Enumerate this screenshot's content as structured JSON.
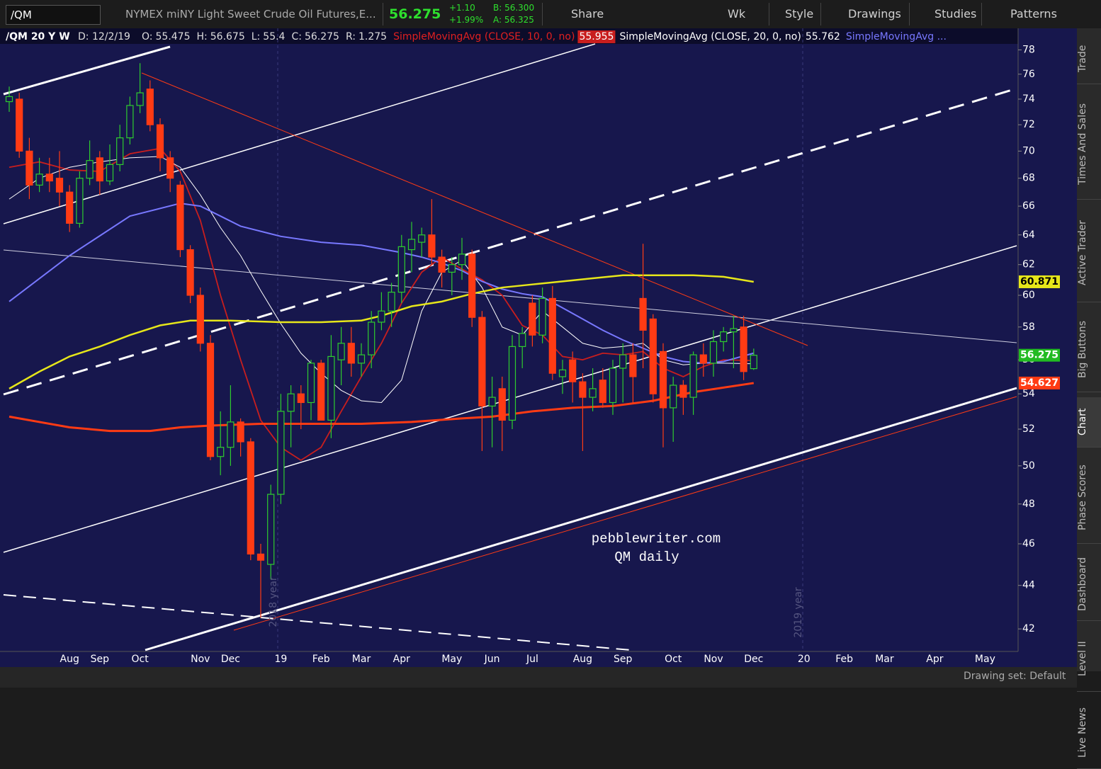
{
  "toolbar": {
    "symbol": "/QM",
    "description": "NYMEX miNY Light Sweet Crude Oil Futures,E...",
    "change": "+1.10",
    "change_pct": "+1.99%",
    "bid": "B: 56.300",
    "ask": "A: 56.325",
    "buttons": [
      "Share",
      "Wk",
      "Style",
      "Drawings",
      "Studies",
      "Patterns"
    ]
  },
  "info": {
    "symbol": "/QM 20 Y W",
    "date": "D: 12/2/19",
    "ohlc_labels": [
      "O:",
      "H:",
      "L:",
      "C:"
    ],
    "range_label": "R:",
    "range": 1.275,
    "more_study": "SimpleMovingAvg ..."
  },
  "sidebar": [
    "Trade",
    "Times And Sales",
    "Active Trader",
    "Big Buttons",
    "Chart",
    "Phase Scores",
    "Dashboard",
    "Level II",
    "Live News"
  ],
  "status": "Drawing set: Default",
  "chart_data": {
    "type": "candlestick",
    "log_scale": true,
    "categories": [
      null,
      null,
      null,
      null,
      null,
      null,
      "Aug",
      null,
      null,
      "Sep",
      null,
      null,
      null,
      "Oct",
      null,
      null,
      null,
      null,
      null,
      "Nov",
      null,
      null,
      "Dec",
      null,
      null,
      null,
      null,
      "19",
      null,
      null,
      null,
      "Feb",
      null,
      null,
      null,
      "Mar",
      null,
      null,
      null,
      "Apr",
      null,
      null,
      null,
      null,
      "May",
      null,
      null,
      null,
      "Jun",
      null,
      null,
      null,
      "Jul",
      null,
      null,
      null,
      null,
      "Aug",
      null,
      null,
      null,
      "Sep",
      null,
      null,
      null,
      null,
      "Oct",
      null,
      null,
      null,
      "Nov",
      null,
      null,
      null,
      "Dec",
      null,
      null,
      null,
      null,
      "20",
      null,
      null,
      null,
      "Feb",
      null,
      null,
      null,
      "Mar",
      null,
      null,
      null,
      null,
      "Apr",
      null,
      null,
      null,
      null,
      "May",
      null,
      null,
      null
    ],
    "open": [
      73.8,
      74,
      70,
      67.5,
      68.3,
      68,
      67,
      64.8,
      68,
      69.5,
      67.8,
      69,
      71,
      73.5,
      74.8,
      72,
      69.5,
      67.5,
      63,
      60,
      57,
      50.5,
      51,
      52.4,
      51.3,
      45.5,
      45,
      48.5,
      53,
      54,
      53.5,
      55.8,
      52.5,
      56,
      57,
      55.8,
      56.3,
      58.3,
      59,
      60.2,
      63,
      63.5,
      64,
      62.5,
      61.5,
      62,
      62.7,
      58.6,
      53.3,
      54.3,
      52.5,
      56.8,
      59.5,
      57.5,
      59.8,
      55,
      56,
      54.7,
      53.8,
      54.8,
      53.5,
      55.5,
      56.3,
      59.8,
      58.5,
      56.5,
      53.2,
      54.5,
      53.8,
      56.3,
      55.8,
      57.1,
      57.7,
      58,
      55.475,
      null,
      null,
      null,
      null,
      null,
      null,
      null,
      null,
      null,
      null,
      null,
      null,
      null,
      null,
      null,
      null,
      null,
      null,
      null,
      null,
      null,
      null,
      null,
      null,
      null,
      null
    ],
    "high": [
      75,
      74.5,
      71,
      69.5,
      69.5,
      70,
      67.5,
      68.5,
      70.8,
      70,
      70.5,
      72,
      74.2,
      76.9,
      75.5,
      72.5,
      70,
      67.8,
      63.3,
      60.5,
      57.5,
      53,
      54.5,
      52.6,
      51.5,
      46,
      49,
      54,
      54.5,
      54.5,
      56,
      56,
      57.5,
      58,
      58,
      57,
      59,
      60.2,
      60.8,
      64,
      64.9,
      64.5,
      66.5,
      63,
      62.5,
      63.8,
      63,
      59,
      55,
      55,
      57.5,
      58,
      60,
      60.5,
      60.6,
      56,
      56.5,
      55.2,
      55.5,
      55.5,
      56,
      57,
      57,
      63.4,
      58.8,
      57,
      55,
      54.8,
      56.5,
      57,
      57.8,
      58,
      58.7,
      58.7,
      56.675,
      null,
      null,
      null,
      null,
      null,
      null,
      null,
      null,
      null,
      null,
      null,
      null,
      null,
      null,
      null,
      null,
      null,
      null,
      null,
      null,
      null,
      null,
      null,
      null,
      null,
      null
    ],
    "low": [
      73,
      69.5,
      66.5,
      67,
      67,
      66,
      64.2,
      64.5,
      67.5,
      66.8,
      67.5,
      68.5,
      70.5,
      72.9,
      71.5,
      68.5,
      67,
      62.5,
      59.5,
      56.5,
      50.3,
      49.5,
      50,
      50.5,
      45.2,
      42.5,
      44.3,
      48,
      51,
      52,
      52.5,
      52.5,
      51.5,
      54.5,
      55,
      55,
      55.5,
      57.8,
      58,
      59.5,
      61.5,
      62.5,
      62,
      60.5,
      60,
      61,
      58,
      50.8,
      51,
      50.8,
      52,
      55.5,
      56.8,
      57,
      54.8,
      54,
      53.5,
      50.8,
      53,
      53.2,
      52.8,
      53.5,
      53.5,
      55.5,
      53.5,
      51,
      51.3,
      52.8,
      52.8,
      55,
      55,
      56.5,
      55.5,
      54.8,
      55.4,
      null,
      null,
      null,
      null,
      null,
      null,
      null,
      null,
      null,
      null,
      null,
      null,
      null,
      null,
      null,
      null,
      null,
      null,
      null,
      null,
      null,
      null,
      null,
      null,
      null,
      null
    ],
    "close": [
      74.2,
      70,
      67.5,
      68.3,
      67.8,
      67,
      64.8,
      68,
      69.3,
      67.8,
      69,
      71,
      73.5,
      74.5,
      72,
      69.5,
      68,
      63,
      60,
      57,
      50.5,
      51,
      52.4,
      51.3,
      45.5,
      45.2,
      48.5,
      53,
      54,
      53.5,
      55.8,
      52.5,
      56.2,
      57,
      55.8,
      56.3,
      58.3,
      59,
      60.2,
      63.2,
      63.7,
      64,
      62.5,
      61.5,
      62,
      62.7,
      58.6,
      53.3,
      53.8,
      52.5,
      56.8,
      57.6,
      57.5,
      59.8,
      55.2,
      55.4,
      54.7,
      53.8,
      54.3,
      53.5,
      55.5,
      56.3,
      55,
      57.8,
      54,
      53.2,
      54.5,
      53.8,
      56.3,
      55.8,
      57.1,
      57.7,
      57.9,
      55.3,
      56.275,
      null,
      null,
      null,
      null,
      null,
      null,
      null,
      null,
      null,
      null,
      null,
      null,
      null,
      null,
      null,
      null,
      null,
      null,
      null,
      null,
      null,
      null,
      null,
      null,
      null,
      null
    ],
    "up_color": "#2ecc2e",
    "down_color": "#ff3b14",
    "series": [
      {
        "name": "SimpleMovingAvg (CLOSE, 10, 0, no)",
        "color": "#c81e1e",
        "width": 1.8,
        "x": [
          0,
          3,
          6,
          9,
          12,
          15,
          17,
          19,
          21,
          23,
          25,
          27,
          29,
          31,
          33,
          35,
          37,
          39,
          41,
          43,
          45,
          47,
          49,
          51,
          53,
          55,
          57,
          59,
          61,
          63,
          65,
          67,
          69,
          71,
          74
        ],
        "values": [
          68.8,
          69.2,
          68.6,
          68.5,
          69.8,
          70.2,
          68.5,
          65,
          60,
          56,
          52.5,
          51,
          50.3,
          51,
          53,
          55,
          57,
          59.5,
          61.5,
          62.5,
          61.7,
          61,
          60,
          58.1,
          57.5,
          56.2,
          56,
          56.4,
          56.3,
          56.5,
          55.5,
          55,
          55.6,
          56,
          55.955
        ]
      },
      {
        "name": "SimpleMovingAvg (CLOSE, 20, 0, no)",
        "color": "#ffffff",
        "width": 1,
        "x": [
          0,
          3,
          6,
          9,
          12,
          15,
          17,
          19,
          21,
          23,
          25,
          27,
          29,
          31,
          33,
          35,
          37,
          39,
          41,
          43,
          45,
          47,
          49,
          51,
          53,
          55,
          57,
          59,
          61,
          63,
          65,
          67,
          69,
          71,
          74
        ],
        "values": [
          66.5,
          68,
          68.8,
          69.2,
          69.5,
          69.6,
          68.8,
          66.8,
          64.5,
          62.6,
          60.3,
          58.2,
          56.4,
          55.2,
          54.2,
          53.6,
          53.5,
          54.8,
          59,
          61.5,
          62.3,
          60.5,
          58,
          57.5,
          59,
          58,
          57,
          56.7,
          56.8,
          57,
          56,
          55.7,
          55.8,
          55.8,
          55.762
        ]
      },
      {
        "color": "#7878ff",
        "width": 2,
        "x": [
          0,
          6,
          12,
          17,
          19,
          21,
          23,
          27,
          31,
          35,
          39,
          41,
          43,
          45,
          47,
          49,
          51,
          53,
          55,
          57,
          59,
          61,
          63,
          65,
          67,
          69,
          71,
          74
        ],
        "values": [
          59.6,
          62.6,
          65.3,
          66.2,
          66,
          65.3,
          64.6,
          63.9,
          63.5,
          63.3,
          62.8,
          62.5,
          62.1,
          61.6,
          60.9,
          60.4,
          60.1,
          59.9,
          59.2,
          58.5,
          57.8,
          57.2,
          56.7,
          56.2,
          55.9,
          55.8,
          55.9,
          56.4
        ]
      },
      {
        "color": "#e6e61a",
        "width": 2.5,
        "x": [
          0,
          3,
          6,
          9,
          12,
          15,
          18,
          22,
          27,
          31,
          35,
          37,
          40,
          43,
          46,
          49,
          52,
          55,
          58,
          61,
          64,
          68,
          71,
          74
        ],
        "values": [
          54.3,
          55.3,
          56.2,
          56.8,
          57.5,
          58.1,
          58.4,
          58.4,
          58.3,
          58.3,
          58.4,
          58.7,
          59.3,
          59.6,
          60.1,
          60.5,
          60.7,
          60.9,
          61.1,
          61.3,
          61.3,
          61.3,
          61.2,
          60.871
        ]
      },
      {
        "color": "#ff3b14",
        "width": 3,
        "x": [
          0,
          3,
          6,
          10,
          14,
          17,
          20,
          25,
          30,
          35,
          40,
          45,
          48,
          52,
          56,
          60,
          64,
          68,
          74
        ],
        "values": [
          52.7,
          52.4,
          52.1,
          51.9,
          51.9,
          52.1,
          52.2,
          52.3,
          52.3,
          52.3,
          52.4,
          52.6,
          52.7,
          53,
          53.2,
          53.3,
          53.6,
          54.1,
          54.627
        ]
      }
    ],
    "ylim": [
      41,
      78.5
    ],
    "yticks": [
      42,
      44,
      46,
      48,
      50,
      52,
      54,
      56,
      58,
      60,
      62,
      64,
      66,
      68,
      70,
      72,
      74,
      76,
      78
    ],
    "annotations": [
      "pebblewriter.com",
      "QM daily",
      "2018 year",
      "2019 year"
    ]
  }
}
